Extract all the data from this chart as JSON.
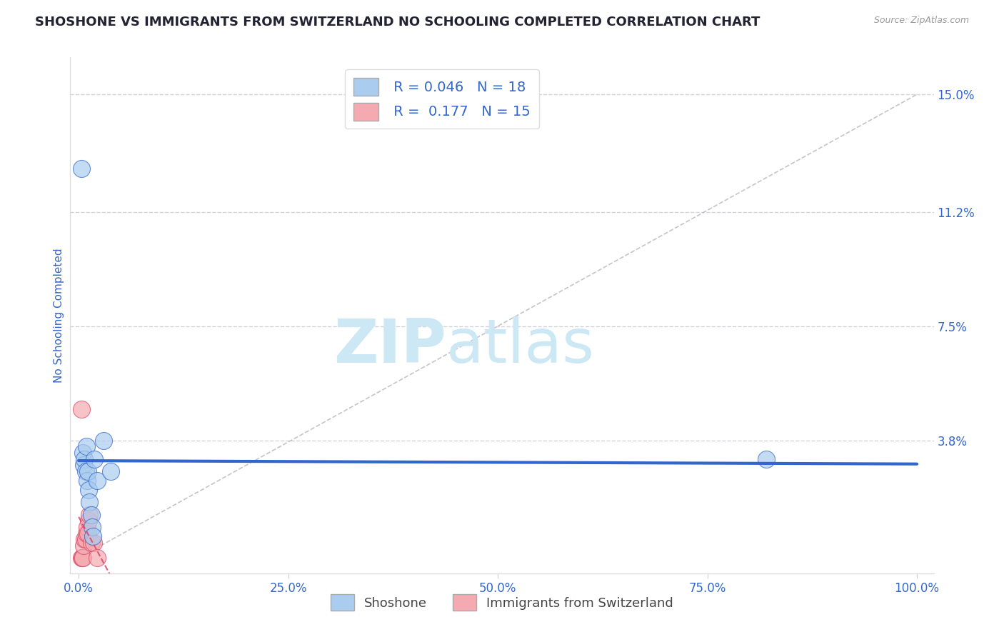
{
  "title": "SHOSHONE VS IMMIGRANTS FROM SWITZERLAND NO SCHOOLING COMPLETED CORRELATION CHART",
  "source_text": "Source: ZipAtlas.com",
  "ylabel": "No Schooling Completed",
  "xlabel": "",
  "legend_label1": "Shoshone",
  "legend_label2": "Immigrants from Switzerland",
  "R1": 0.046,
  "N1": 18,
  "R2": 0.177,
  "N2": 15,
  "color1": "#aaccee",
  "color2": "#f4aab0",
  "line_color1": "#3366cc",
  "line_color2": "#dd4466",
  "ref_line_color": "#bbbbbb",
  "yticks": [
    0.0,
    0.038,
    0.075,
    0.112,
    0.15
  ],
  "ytick_labels": [
    "",
    "3.8%",
    "7.5%",
    "11.2%",
    "15.0%"
  ],
  "xlim": [
    -0.01,
    1.02
  ],
  "ylim": [
    -0.005,
    0.162
  ],
  "xtick_labels": [
    "0.0%",
    "25.0%",
    "50.0%",
    "75.0%",
    "100.0%"
  ],
  "xtick_vals": [
    0.0,
    0.25,
    0.5,
    0.75,
    1.0
  ],
  "shoshone_x": [
    0.003,
    0.005,
    0.006,
    0.007,
    0.008,
    0.009,
    0.01,
    0.011,
    0.012,
    0.013,
    0.015,
    0.016,
    0.017,
    0.019,
    0.022,
    0.03,
    0.038,
    0.82
  ],
  "shoshone_y": [
    0.126,
    0.034,
    0.03,
    0.032,
    0.028,
    0.036,
    0.025,
    0.028,
    0.022,
    0.018,
    0.014,
    0.01,
    0.007,
    0.032,
    0.025,
    0.038,
    0.028,
    0.032
  ],
  "swiss_x": [
    0.003,
    0.004,
    0.005,
    0.006,
    0.007,
    0.008,
    0.009,
    0.01,
    0.011,
    0.012,
    0.013,
    0.015,
    0.018,
    0.022,
    0.003
  ],
  "swiss_y": [
    0.0,
    0.0,
    0.0,
    0.004,
    0.006,
    0.006,
    0.008,
    0.01,
    0.008,
    0.012,
    0.014,
    0.005,
    0.005,
    0.0,
    0.048
  ],
  "watermark_zip": "ZIP",
  "watermark_atlas": "atlas",
  "watermark_color": "#cde8f5",
  "bg_color": "#ffffff",
  "grid_color": "#ccccdd",
  "title_color": "#222233",
  "axis_label_color": "#3366cc",
  "tick_color": "#3366cc",
  "title_fontsize": 13,
  "axis_label_fontsize": 11,
  "tick_fontsize": 12,
  "source_fontsize": 9
}
